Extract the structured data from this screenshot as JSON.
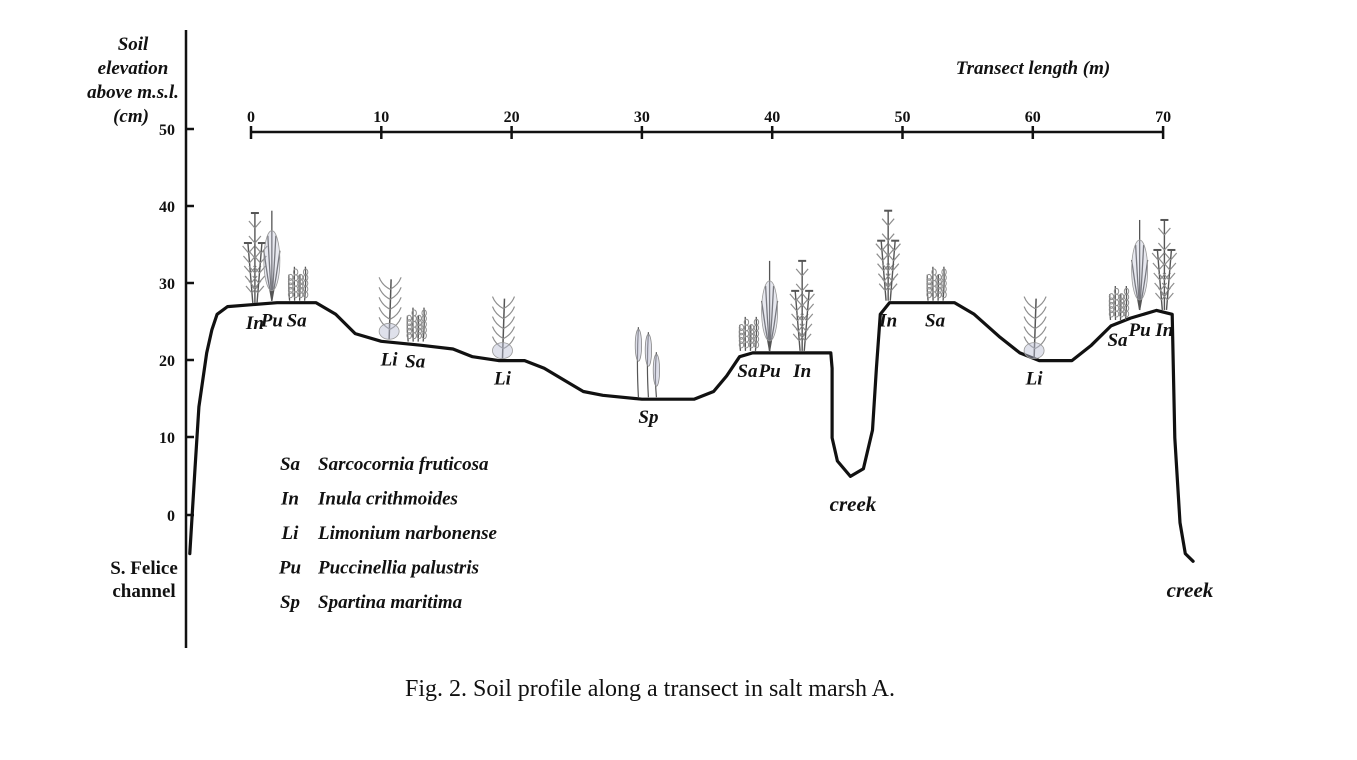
{
  "y_axis": {
    "label_lines": [
      "Soil",
      "elevation",
      "above m.s.l.",
      "(cm)"
    ],
    "ticks": [
      "50",
      "40",
      "30",
      "20",
      "10",
      "0"
    ]
  },
  "x_axis": {
    "label": "Transect length (m)",
    "ticks": [
      "0",
      "10",
      "20",
      "30",
      "40",
      "50",
      "60",
      "70"
    ]
  },
  "profile": [
    [
      -4.7,
      -5
    ],
    [
      -4.3,
      6
    ],
    [
      -4.0,
      14
    ],
    [
      -3.4,
      21
    ],
    [
      -3.0,
      24
    ],
    [
      -2.6,
      26
    ],
    [
      -1.8,
      27
    ],
    [
      2,
      27.5
    ],
    [
      5,
      27.5
    ],
    [
      6.5,
      26
    ],
    [
      8,
      23.5
    ],
    [
      10,
      22.5
    ],
    [
      13,
      22
    ],
    [
      15.5,
      21.5
    ],
    [
      17,
      20.5
    ],
    [
      19,
      20
    ],
    [
      21,
      20
    ],
    [
      22.5,
      19
    ],
    [
      24,
      17.5
    ],
    [
      25.5,
      16
    ],
    [
      27,
      15.5
    ],
    [
      30,
      15
    ],
    [
      34,
      15
    ],
    [
      35.5,
      16
    ],
    [
      36.5,
      18
    ],
    [
      37.5,
      20.5
    ],
    [
      38.5,
      21
    ],
    [
      44.5,
      21
    ],
    [
      44.6,
      19
    ],
    [
      44.6,
      10
    ],
    [
      45,
      7
    ],
    [
      46,
      5
    ],
    [
      47,
      6
    ],
    [
      47.7,
      11
    ],
    [
      48,
      19
    ],
    [
      48.3,
      26
    ],
    [
      49,
      27.5
    ],
    [
      54,
      27.5
    ],
    [
      55.5,
      26
    ],
    [
      57.5,
      23
    ],
    [
      59,
      21
    ],
    [
      60.5,
      20
    ],
    [
      63,
      20
    ],
    [
      64.5,
      22
    ],
    [
      66,
      24.5
    ],
    [
      67.5,
      25.5
    ],
    [
      69.5,
      26.5
    ],
    [
      70.7,
      26
    ],
    [
      70.9,
      10
    ],
    [
      71.3,
      -1
    ],
    [
      71.7,
      -5
    ],
    [
      72.3,
      -6
    ]
  ],
  "plants": [
    {
      "code": "In",
      "x": 0.3,
      "y": 27.2
    },
    {
      "code": "Pu",
      "x": 1.6,
      "y": 27.5
    },
    {
      "code": "Sa",
      "x": 3.5,
      "y": 27.5
    },
    {
      "code": "Li",
      "x": 10.6,
      "y": 22.5
    },
    {
      "code": "Sa",
      "x": 12.6,
      "y": 22.2
    },
    {
      "code": "Li",
      "x": 19.3,
      "y": 20
    },
    {
      "code": "Sp",
      "x": 30.5,
      "y": 15
    },
    {
      "code": "Sa",
      "x": 38.1,
      "y": 21
    },
    {
      "code": "Pu",
      "x": 39.8,
      "y": 21
    },
    {
      "code": "In",
      "x": 42.3,
      "y": 21
    },
    {
      "code": "In",
      "x": 48.9,
      "y": 27.5
    },
    {
      "code": "Sa",
      "x": 52.5,
      "y": 27.5
    },
    {
      "code": "Li",
      "x": 60.1,
      "y": 20
    },
    {
      "code": "Sa",
      "x": 66.5,
      "y": 25
    },
    {
      "code": "Pu",
      "x": 68.2,
      "y": 26.3
    },
    {
      "code": "In",
      "x": 70.1,
      "y": 26.3
    }
  ],
  "legend": [
    {
      "code": "Sa",
      "name": "Sarcocornia fruticosa"
    },
    {
      "code": "In",
      "name": "Inula crithmoides"
    },
    {
      "code": "Li",
      "name": "Limonium narbonense"
    },
    {
      "code": "Pu",
      "name": "Puccinellia palustris"
    },
    {
      "code": "Sp",
      "name": "Spartina maritima"
    }
  ],
  "places": {
    "channel_lines": [
      "S. Felice",
      "channel"
    ],
    "creek_mid": "creek",
    "creek_end": "creek"
  },
  "caption": "Fig. 2. Soil profile along a transect in salt marsh A."
}
